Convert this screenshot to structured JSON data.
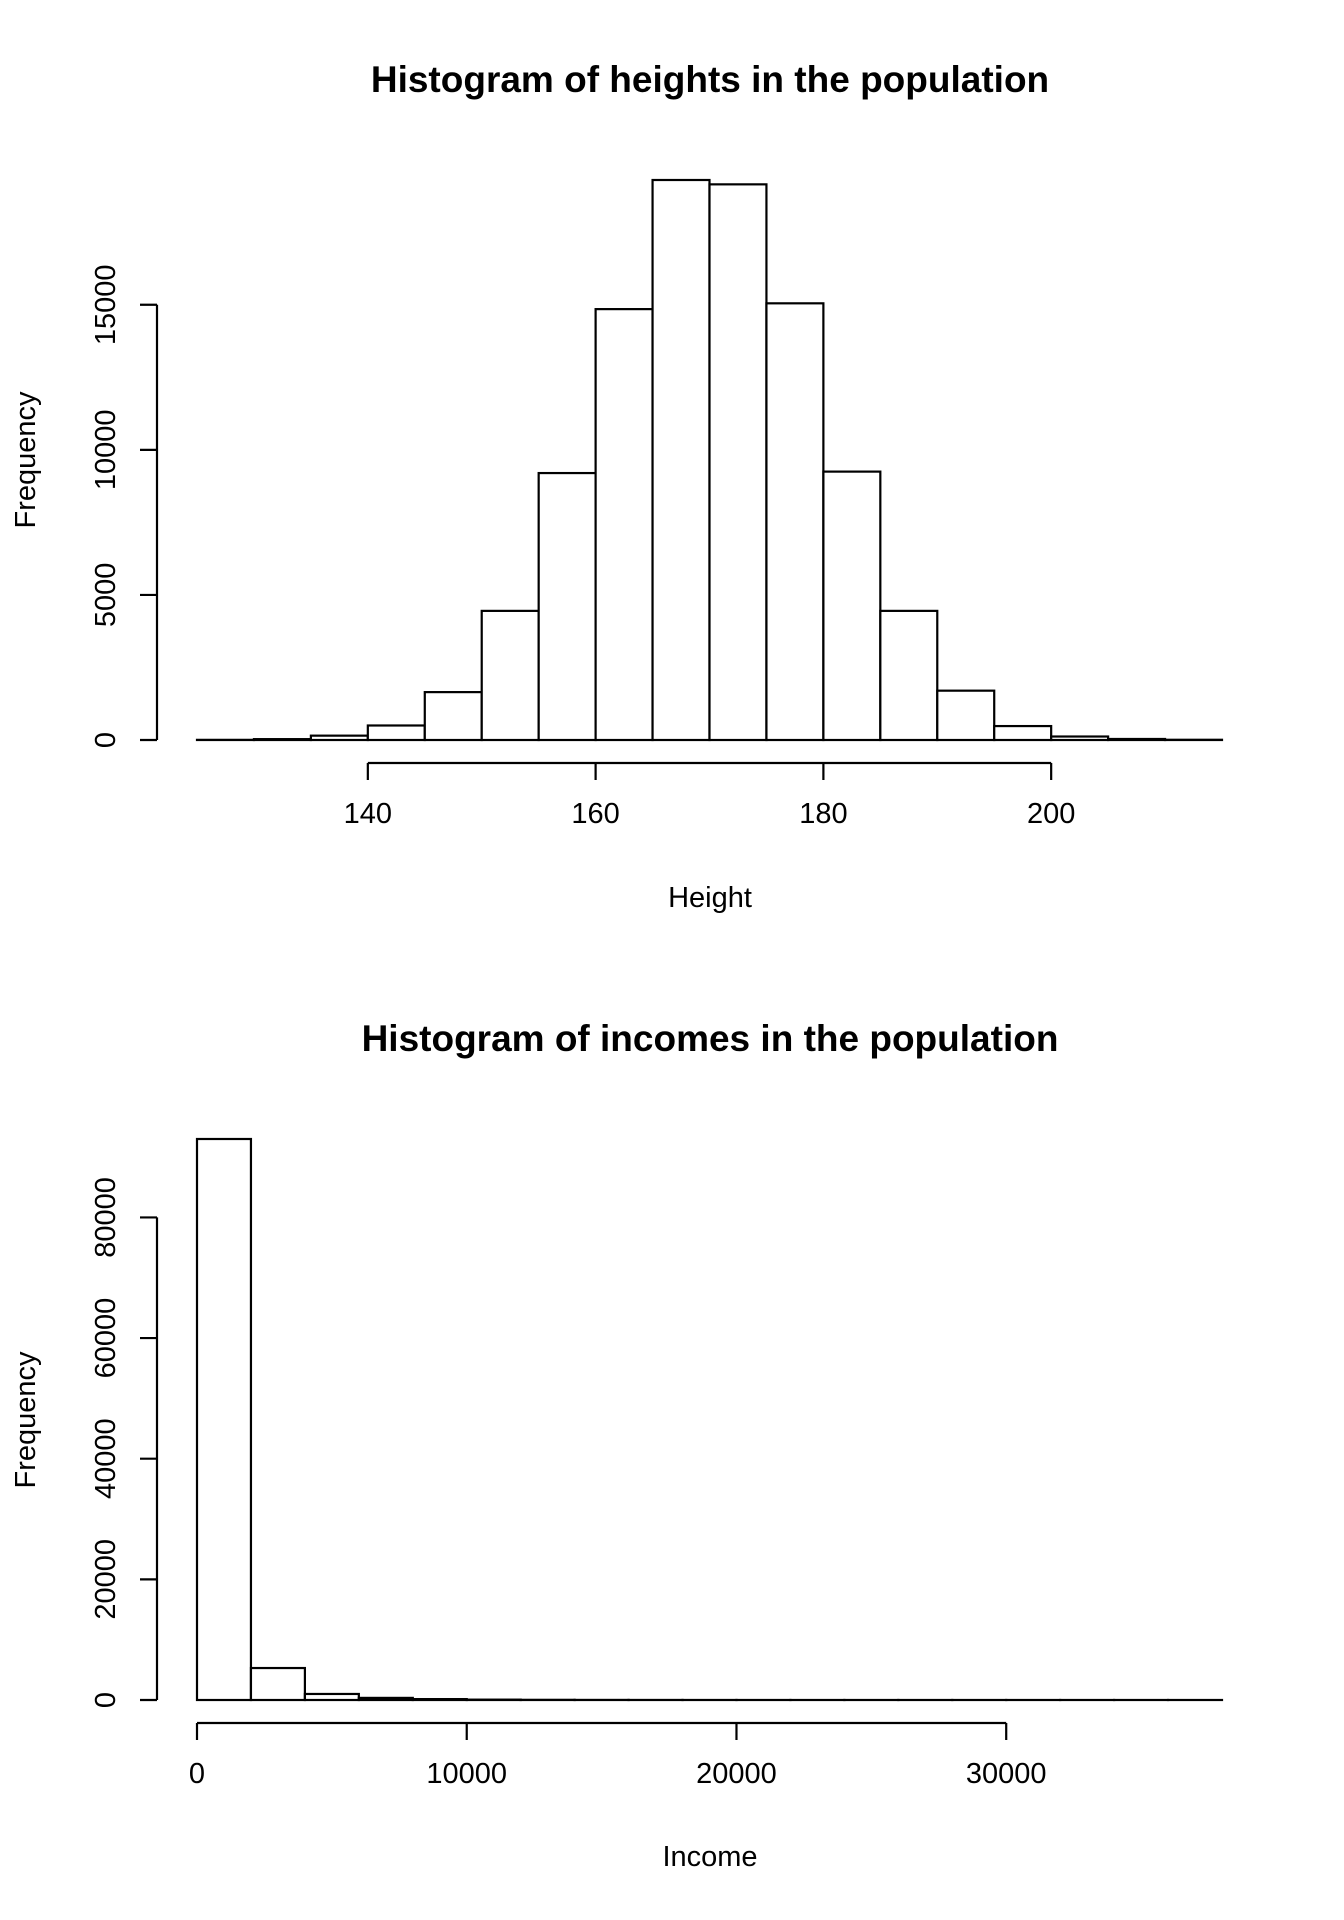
{
  "chart_data": [
    {
      "type": "bar",
      "title": "Histogram of heights in the population",
      "xlabel": "Height",
      "ylabel": "Frequency",
      "bin_edges": [
        125,
        130,
        135,
        140,
        145,
        150,
        155,
        160,
        165,
        170,
        175,
        180,
        185,
        190,
        195,
        200,
        205,
        210,
        215
      ],
      "values": [
        5,
        30,
        150,
        500,
        1650,
        4450,
        9200,
        14850,
        19300,
        19150,
        15050,
        9250,
        4450,
        1700,
        480,
        120,
        35,
        8
      ],
      "xlim": [
        125,
        215
      ],
      "ylim": [
        0,
        19300
      ],
      "x_ticks": [
        140,
        160,
        180,
        200
      ],
      "y_ticks": [
        0,
        5000,
        10000,
        15000
      ],
      "x_tick_labels": [
        "140",
        "160",
        "180",
        "200"
      ],
      "y_tick_labels": [
        "0",
        "5000",
        "10000",
        "15000"
      ],
      "grid": false
    },
    {
      "type": "bar",
      "title": "Histogram of incomes in the population",
      "xlabel": "Income",
      "ylabel": "Frequency",
      "bin_edges": [
        0,
        2000,
        4000,
        6000,
        8000,
        10000,
        12000,
        14000,
        16000,
        18000,
        20000,
        22000,
        24000,
        26000,
        28000,
        30000,
        32000,
        34000,
        36000,
        38000
      ],
      "values": [
        93000,
        5300,
        1000,
        350,
        150,
        60,
        30,
        15,
        8,
        5,
        3,
        2,
        1,
        1,
        1,
        1,
        1,
        1,
        1
      ],
      "xlim": [
        0,
        38000
      ],
      "ylim": [
        0,
        93000
      ],
      "x_ticks": [
        0,
        10000,
        20000,
        30000
      ],
      "y_ticks": [
        0,
        20000,
        40000,
        60000,
        80000
      ],
      "x_tick_labels": [
        "0",
        "10000",
        "20000",
        "30000"
      ],
      "y_tick_labels": [
        "0",
        "20000",
        "40000",
        "60000",
        "80000"
      ],
      "grid": false
    }
  ]
}
